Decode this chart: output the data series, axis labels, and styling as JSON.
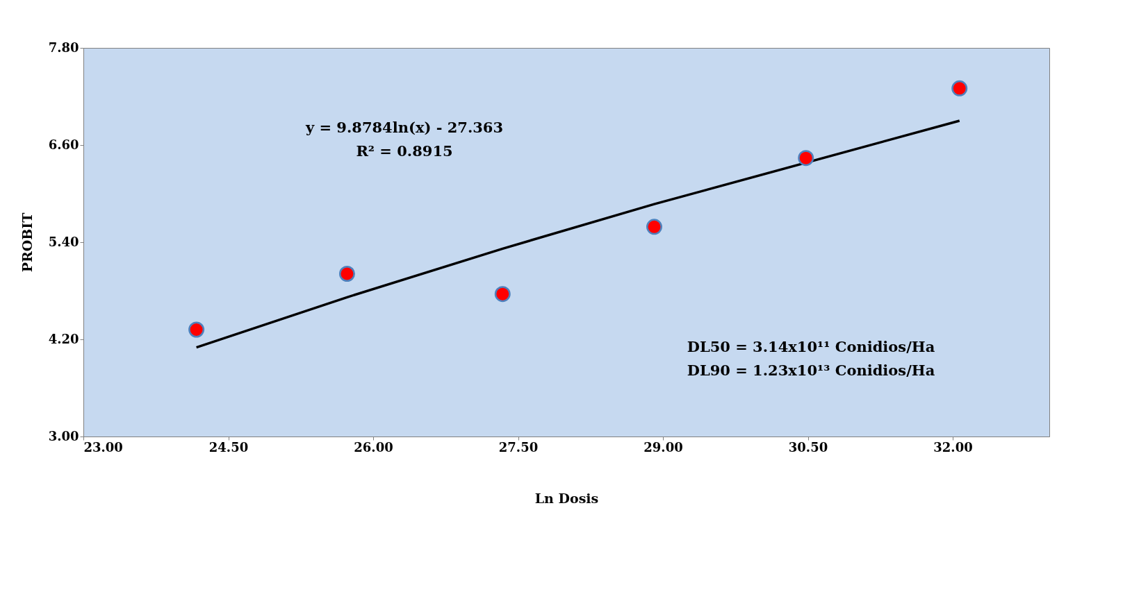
{
  "chart_data": {
    "type": "scatter",
    "xlabel": "Ln Dosis",
    "ylabel": "PROBIT",
    "xlim": [
      23,
      33
    ],
    "xticks": [
      {
        "value": 23,
        "label": "23.00"
      },
      {
        "value": 24.5,
        "label": "24.50"
      },
      {
        "value": 26,
        "label": "26.00"
      },
      {
        "value": 27.5,
        "label": "27.50"
      },
      {
        "value": 29,
        "label": "29.00"
      },
      {
        "value": 30.5,
        "label": "30.50"
      },
      {
        "value": 32,
        "label": "32.00"
      }
    ],
    "ylim": [
      3,
      7.8
    ],
    "yticks": [
      {
        "value": 3,
        "label": "3.00"
      },
      {
        "value": 4.2,
        "label": "4.20"
      },
      {
        "value": 5.4,
        "label": "5.40"
      },
      {
        "value": 6.6,
        "label": "6.60"
      },
      {
        "value": 7.8,
        "label": "7.80"
      }
    ],
    "grid": false,
    "marker": "circle",
    "series": [
      {
        "color": "#ff0000",
        "x": [
          24.17,
          25.73,
          27.34,
          28.91,
          30.48,
          32.07
        ],
        "values": [
          4.32,
          5.01,
          4.76,
          5.59,
          6.44,
          7.3
        ]
      },
      {
        "type": "line",
        "color": "#000000",
        "line_style": "solid",
        "marker": "none",
        "x": [
          24.17,
          25.73,
          27.34,
          28.91,
          32.07
        ],
        "values": [
          4.1,
          4.72,
          5.32,
          5.87,
          6.9
        ]
      }
    ],
    "annotations": [
      "y = 9.8784ln(x) - 27.363",
      "R² = 0.8915",
      "DL50 = 3.14x10¹¹ Conidios/Ha",
      "DL90 = 1.23x10¹³ Conidios/Ha"
    ]
  }
}
